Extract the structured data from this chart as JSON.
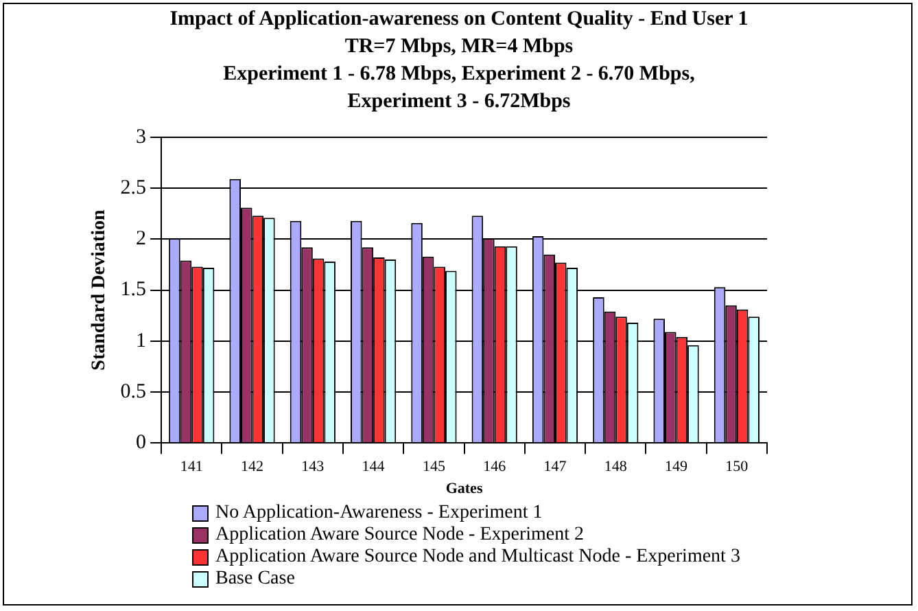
{
  "chart_data": {
    "type": "bar",
    "title": "Impact of Application-awareness on Content Quality - End User 1",
    "subtitle": "TR=7 Mbps, MR=4 Mbps\nExperiment 1 - 6.78 Mbps, Experiment 2 - 6.70 Mbps,\nExperiment 3 - 6.72Mbps",
    "xlabel": "Gates",
    "ylabel": "Standard Deviation",
    "categories": [
      "141",
      "142",
      "143",
      "144",
      "145",
      "146",
      "147",
      "148",
      "149",
      "150"
    ],
    "series": [
      {
        "name": "No Application-Awareness - Experiment 1",
        "color": "#aaaaff",
        "values": [
          2.01,
          2.59,
          2.18,
          2.18,
          2.16,
          2.23,
          2.03,
          1.43,
          1.22,
          1.53
        ]
      },
      {
        "name": "Application Aware Source Node - Experiment 2",
        "color": "#993366",
        "values": [
          1.79,
          2.31,
          1.92,
          1.92,
          1.83,
          2.01,
          1.85,
          1.29,
          1.09,
          1.35
        ]
      },
      {
        "name": "Application Aware Source Node and Multicast Node - Experiment 3",
        "color": "#ff3333",
        "values": [
          1.73,
          2.23,
          1.81,
          1.82,
          1.73,
          1.93,
          1.77,
          1.24,
          1.04,
          1.31
        ]
      },
      {
        "name": "Base Case",
        "color": "#ccffff",
        "values": [
          1.72,
          2.21,
          1.78,
          1.8,
          1.69,
          1.93,
          1.72,
          1.18,
          0.96,
          1.24
        ]
      }
    ],
    "ylim": [
      0,
      3
    ],
    "yticks": [
      0,
      0.5,
      1,
      1.5,
      2,
      2.5,
      3
    ],
    "grid": "y",
    "legend": "bottom left"
  }
}
